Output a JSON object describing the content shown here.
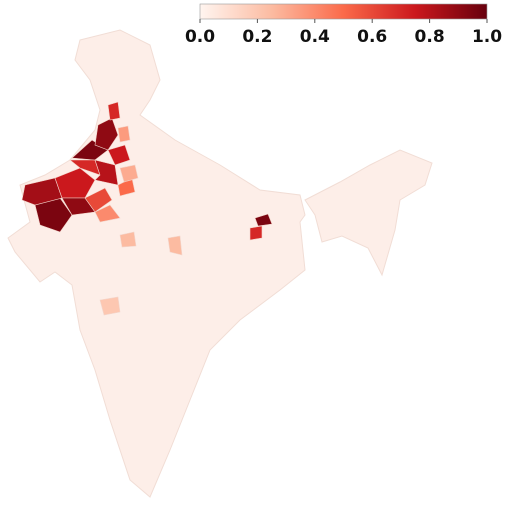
{
  "chart_data": {
    "type": "choropleth",
    "colorscale": [
      "#fff5f0",
      "#fcbba1",
      "#fb6a4a",
      "#cb181d",
      "#67000d"
    ],
    "colorbar": {
      "range": [
        0,
        1
      ],
      "ticks": [
        {
          "value": 0,
          "label": "0.0"
        },
        0.2,
        0.4,
        0.6,
        0.8,
        {
          "value": 1,
          "label": "1.0"
        }
      ]
    },
    "values": [
      0.95,
      0.85,
      0.75,
      0.9,
      0.7,
      0.95,
      0.8,
      0.4,
      0.9,
      0.75,
      0.5,
      0.7,
      0.35,
      0.6,
      0.3,
      0.95,
      0.7,
      0.2,
      0.25,
      0.25
    ]
  }
}
